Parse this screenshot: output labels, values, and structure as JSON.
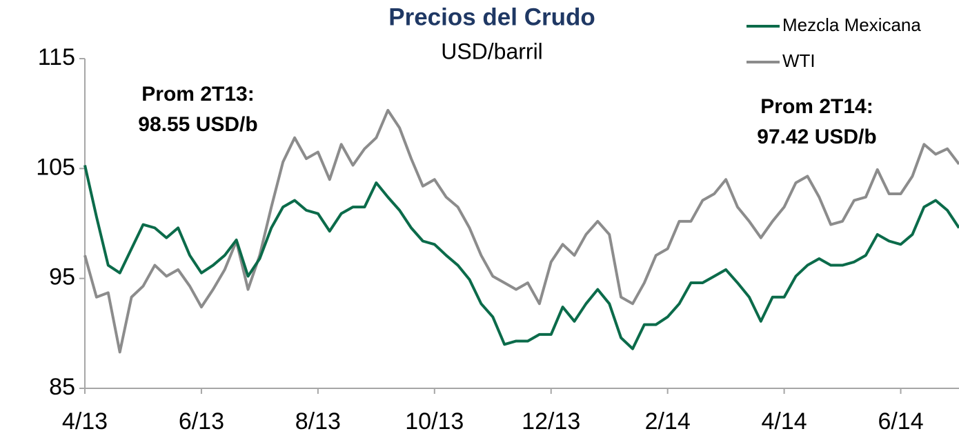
{
  "chart_data": {
    "type": "line",
    "title": "Precios del Crudo",
    "subtitle": "USD/barril",
    "annotations": [
      [
        "Prom 2T13:",
        "98.55 USD/b"
      ],
      [
        "Prom 2T14:",
        "97.42 USD/b"
      ]
    ],
    "x": [
      0,
      0.2,
      0.4,
      0.6,
      0.8,
      1,
      1.2,
      1.4,
      1.6,
      1.8,
      2,
      2.2,
      2.4,
      2.6,
      2.8,
      3,
      3.2,
      3.4,
      3.6,
      3.8,
      4,
      4.2,
      4.4,
      4.6,
      4.8,
      5,
      5.2,
      5.4,
      5.6,
      5.8,
      6,
      6.2,
      6.4,
      6.6,
      6.8,
      7,
      7.2,
      7.4,
      7.6,
      7.8,
      8,
      8.2,
      8.4,
      8.6,
      8.8,
      9,
      9.2,
      9.4,
      9.6,
      9.8,
      10,
      10.2,
      10.4,
      10.6,
      10.8,
      11,
      11.2,
      11.4,
      11.6,
      11.8,
      12,
      12.2,
      12.4,
      12.6,
      12.8,
      13,
      13.2,
      13.4,
      13.6,
      13.8,
      14,
      14.2,
      14.4,
      14.6,
      14.8,
      15
    ],
    "series": [
      {
        "name": "Mezcla Mexicana",
        "color": "#0b6b4a",
        "values": [
          105.3,
          100.6,
          96.2,
          95.5,
          97.7,
          99.9,
          99.6,
          98.7,
          99.6,
          97.1,
          95.5,
          96.2,
          97.1,
          98.5,
          95.2,
          96.8,
          99.6,
          101.5,
          102.1,
          101.2,
          100.9,
          99.3,
          100.9,
          101.5,
          101.5,
          103.7,
          102.4,
          101.2,
          99.6,
          98.4,
          98.1,
          97.1,
          96.2,
          94.9,
          92.7,
          91.5,
          89.0,
          89.3,
          89.3,
          89.9,
          89.9,
          92.4,
          91.1,
          92.7,
          94.0,
          92.7,
          89.6,
          88.6,
          90.8,
          90.8,
          91.5,
          92.7,
          94.6,
          94.6,
          95.2,
          95.8,
          94.6,
          93.3,
          91.1,
          93.3,
          93.3,
          95.2,
          96.2,
          96.8,
          96.2,
          96.2,
          96.5,
          97.1,
          99.0,
          98.4,
          98.1,
          99.0,
          101.5,
          102.1,
          101.2,
          99.6
        ]
      },
      {
        "name": "WTI",
        "color": "#8c8c8c",
        "values": [
          97.1,
          93.3,
          93.7,
          88.3,
          93.3,
          94.3,
          96.2,
          95.2,
          95.8,
          94.3,
          92.4,
          94.0,
          95.8,
          98.4,
          94.0,
          97.1,
          101.5,
          105.6,
          107.8,
          105.9,
          106.5,
          104.0,
          107.2,
          105.3,
          106.8,
          107.8,
          110.3,
          108.7,
          105.9,
          103.4,
          104.0,
          102.4,
          101.5,
          99.6,
          97.1,
          95.2,
          94.6,
          94.0,
          94.6,
          92.7,
          96.5,
          98.1,
          97.1,
          99.0,
          100.2,
          99.0,
          93.3,
          92.7,
          94.6,
          97.1,
          97.7,
          100.2,
          100.2,
          102.1,
          102.7,
          104.0,
          101.5,
          100.2,
          98.7,
          100.2,
          101.5,
          103.7,
          104.3,
          102.4,
          99.9,
          100.2,
          102.1,
          102.4,
          104.9,
          102.7,
          102.7,
          104.3,
          107.2,
          106.3,
          106.8,
          105.4
        ]
      }
    ],
    "xlim": [
      0,
      15
    ],
    "xticks": [
      {
        "value": 0,
        "label": "4/13"
      },
      {
        "value": 2,
        "label": "6/13"
      },
      {
        "value": 4,
        "label": "8/13"
      },
      {
        "value": 6,
        "label": "10/13"
      },
      {
        "value": 8,
        "label": "12/13"
      },
      {
        "value": 10,
        "label": "2/14"
      },
      {
        "value": 12,
        "label": "4/14"
      },
      {
        "value": 14,
        "label": "6/14"
      }
    ],
    "ylim": [
      85,
      115
    ],
    "yticks": [
      85,
      95,
      105,
      115
    ]
  }
}
